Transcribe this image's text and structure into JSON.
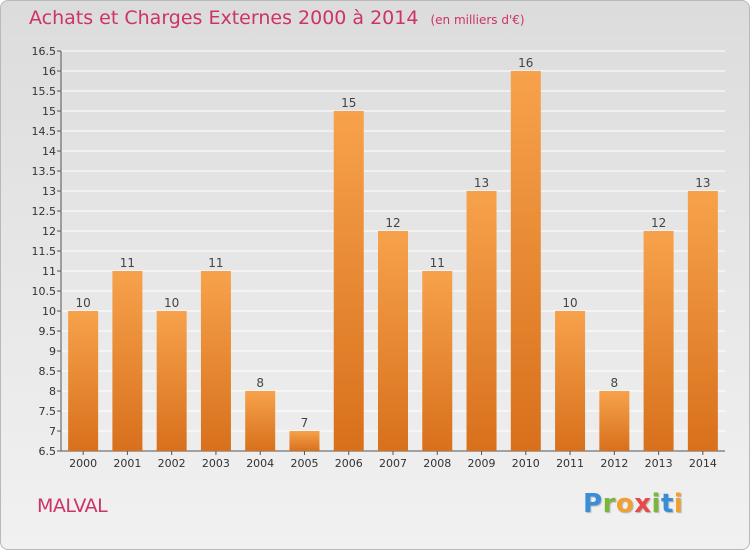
{
  "title": "Achats et Charges Externes 2000 à 2014",
  "unit": "(en milliers d'€)",
  "town": "MALVAL",
  "logo": {
    "text": "Proxiti",
    "letters": [
      {
        "ch": "P",
        "color": "#3a8ed6"
      },
      {
        "ch": "r",
        "color": "#7ab63c"
      },
      {
        "ch": "o",
        "color": "#f0a030"
      },
      {
        "ch": "x",
        "color": "#e84a4a"
      },
      {
        "ch": "i",
        "color": "#7ab63c"
      },
      {
        "ch": "t",
        "color": "#3a8ed6"
      },
      {
        "ch": "i",
        "color": "#f0a030"
      }
    ]
  },
  "colors": {
    "title": "#cc3366",
    "bar_light": "#f7a24b",
    "bar_dark": "#d8701c",
    "grid": "#ffffff"
  },
  "chart_data": {
    "type": "bar",
    "categories": [
      "2000",
      "2001",
      "2002",
      "2003",
      "2004",
      "2005",
      "2006",
      "2007",
      "2008",
      "2009",
      "2010",
      "2011",
      "2012",
      "2013",
      "2014"
    ],
    "values": [
      10,
      11,
      10,
      11,
      8,
      7,
      15,
      12,
      11,
      13,
      16,
      10,
      8,
      12,
      13
    ],
    "value_labels": [
      "10",
      "11",
      "10",
      "11",
      "8",
      "7",
      "15",
      "12",
      "11",
      "13",
      "16",
      "10",
      "8",
      "12",
      "13"
    ],
    "ylim": [
      6.5,
      16.5
    ],
    "yticks": [
      6.5,
      7,
      7.5,
      8,
      8.5,
      9,
      9.5,
      10,
      10.5,
      11,
      11.5,
      12,
      12.5,
      13,
      13.5,
      14,
      14.5,
      15,
      15.5,
      16,
      16.5
    ],
    "ytick_labels": [
      "6.5",
      "7",
      "7.5",
      "8",
      "8.5",
      "9",
      "9.5",
      "10",
      "10.5",
      "11",
      "11.5",
      "12",
      "12.5",
      "13",
      "13.5",
      "14",
      "14.5",
      "15",
      "15.5",
      "16",
      "16.5"
    ],
    "grid": true,
    "legend": "none"
  }
}
